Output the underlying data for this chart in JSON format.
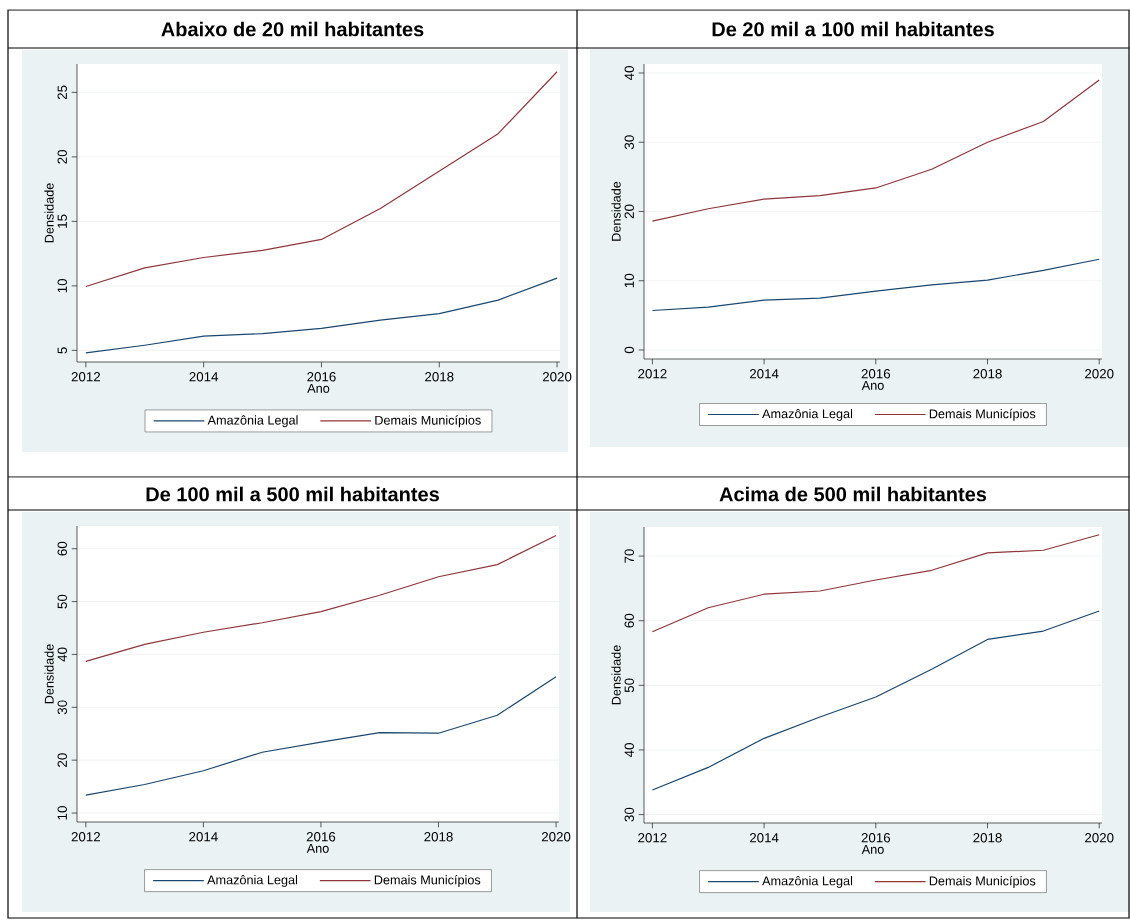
{
  "chart_data": [
    {
      "type": "line",
      "title": "Abaixo de 20 mil habitantes",
      "xlabel": "Ano",
      "ylabel": "Densidade",
      "x": [
        2012,
        2013,
        2014,
        2015,
        2016,
        2017,
        2018,
        2019,
        2020
      ],
      "xlim": [
        2011.85,
        2020.05
      ],
      "xticks": [
        2012,
        2014,
        2016,
        2018,
        2020
      ],
      "ylim": [
        4.1,
        27.2
      ],
      "yticks": [
        5,
        10,
        15,
        20,
        25
      ],
      "grid": "y",
      "legend": "bottom",
      "marker": "none",
      "line_style": "solid",
      "series": [
        {
          "name": "Amazônia Legal",
          "color": "#1a476f",
          "values": [
            4.8,
            5.4,
            6.1,
            6.3,
            6.7,
            7.35,
            7.85,
            8.9,
            10.6
          ]
        },
        {
          "name": "Demais Municípios",
          "color": "#90353b",
          "values": [
            9.95,
            11.4,
            12.2,
            12.75,
            13.6,
            16.0,
            18.9,
            21.8,
            26.6
          ]
        }
      ]
    },
    {
      "type": "line",
      "title": "De 20 mil a 100 mil habitantes",
      "xlabel": "Ano",
      "ylabel": "Densidade",
      "x": [
        2012,
        2013,
        2014,
        2015,
        2016,
        2017,
        2018,
        2019,
        2020
      ],
      "xlim": [
        2011.85,
        2020.05
      ],
      "xticks": [
        2012,
        2014,
        2016,
        2018,
        2020
      ],
      "ylim": [
        -1.3,
        41.3
      ],
      "yticks": [
        0,
        10,
        20,
        30,
        40
      ],
      "grid": "y",
      "legend": "bottom",
      "marker": "none",
      "line_style": "solid",
      "series": [
        {
          "name": "Amazônia Legal",
          "color": "#1a476f",
          "values": [
            5.7,
            6.2,
            7.2,
            7.5,
            8.5,
            9.4,
            10.1,
            11.5,
            13.1
          ]
        },
        {
          "name": "Demais Municípios",
          "color": "#90353b",
          "values": [
            18.6,
            20.4,
            21.8,
            22.3,
            23.4,
            26.1,
            30.0,
            33.0,
            39.0
          ]
        }
      ]
    },
    {
      "type": "line",
      "title": "De 100 mil a 500 mil habitantes",
      "xlabel": "Ano",
      "ylabel": "Densidade",
      "x": [
        2012,
        2013,
        2014,
        2015,
        2016,
        2017,
        2018,
        2019,
        2020
      ],
      "xlim": [
        2011.85,
        2020.05
      ],
      "xticks": [
        2012,
        2014,
        2016,
        2018,
        2020
      ],
      "ylim": [
        8.3,
        64.3
      ],
      "yticks": [
        10,
        20,
        30,
        40,
        50,
        60
      ],
      "grid": "y",
      "legend": "bottom",
      "marker": "none",
      "line_style": "solid",
      "series": [
        {
          "name": "Amazônia Legal",
          "color": "#1a476f",
          "values": [
            13.4,
            15.4,
            18.0,
            21.5,
            23.4,
            25.2,
            25.1,
            28.5,
            35.8
          ]
        },
        {
          "name": "Demais Municípios",
          "color": "#90353b",
          "values": [
            38.7,
            41.9,
            44.2,
            46.0,
            48.1,
            51.2,
            54.7,
            57.0,
            62.5
          ]
        }
      ]
    },
    {
      "type": "line",
      "title": "Acima de 500 mil habitantes",
      "xlabel": "Ano",
      "ylabel": "Densidade",
      "x": [
        2012,
        2013,
        2014,
        2015,
        2016,
        2017,
        2018,
        2019,
        2020
      ],
      "xlim": [
        2011.85,
        2020.05
      ],
      "xticks": [
        2012,
        2014,
        2016,
        2018,
        2020
      ],
      "ylim": [
        28.7,
        74.5
      ],
      "yticks": [
        30,
        40,
        50,
        60,
        70
      ],
      "grid": "y",
      "legend": "bottom",
      "marker": "none",
      "line_style": "solid",
      "series": [
        {
          "name": "Amazônia Legal",
          "color": "#1a476f",
          "values": [
            33.8,
            37.3,
            41.8,
            45.1,
            48.2,
            52.5,
            57.1,
            58.4,
            61.5
          ]
        },
        {
          "name": "Demais Municípios",
          "color": "#90353b",
          "values": [
            58.3,
            62.0,
            64.1,
            64.6,
            66.3,
            67.8,
            70.5,
            70.9,
            73.3
          ]
        }
      ]
    }
  ]
}
